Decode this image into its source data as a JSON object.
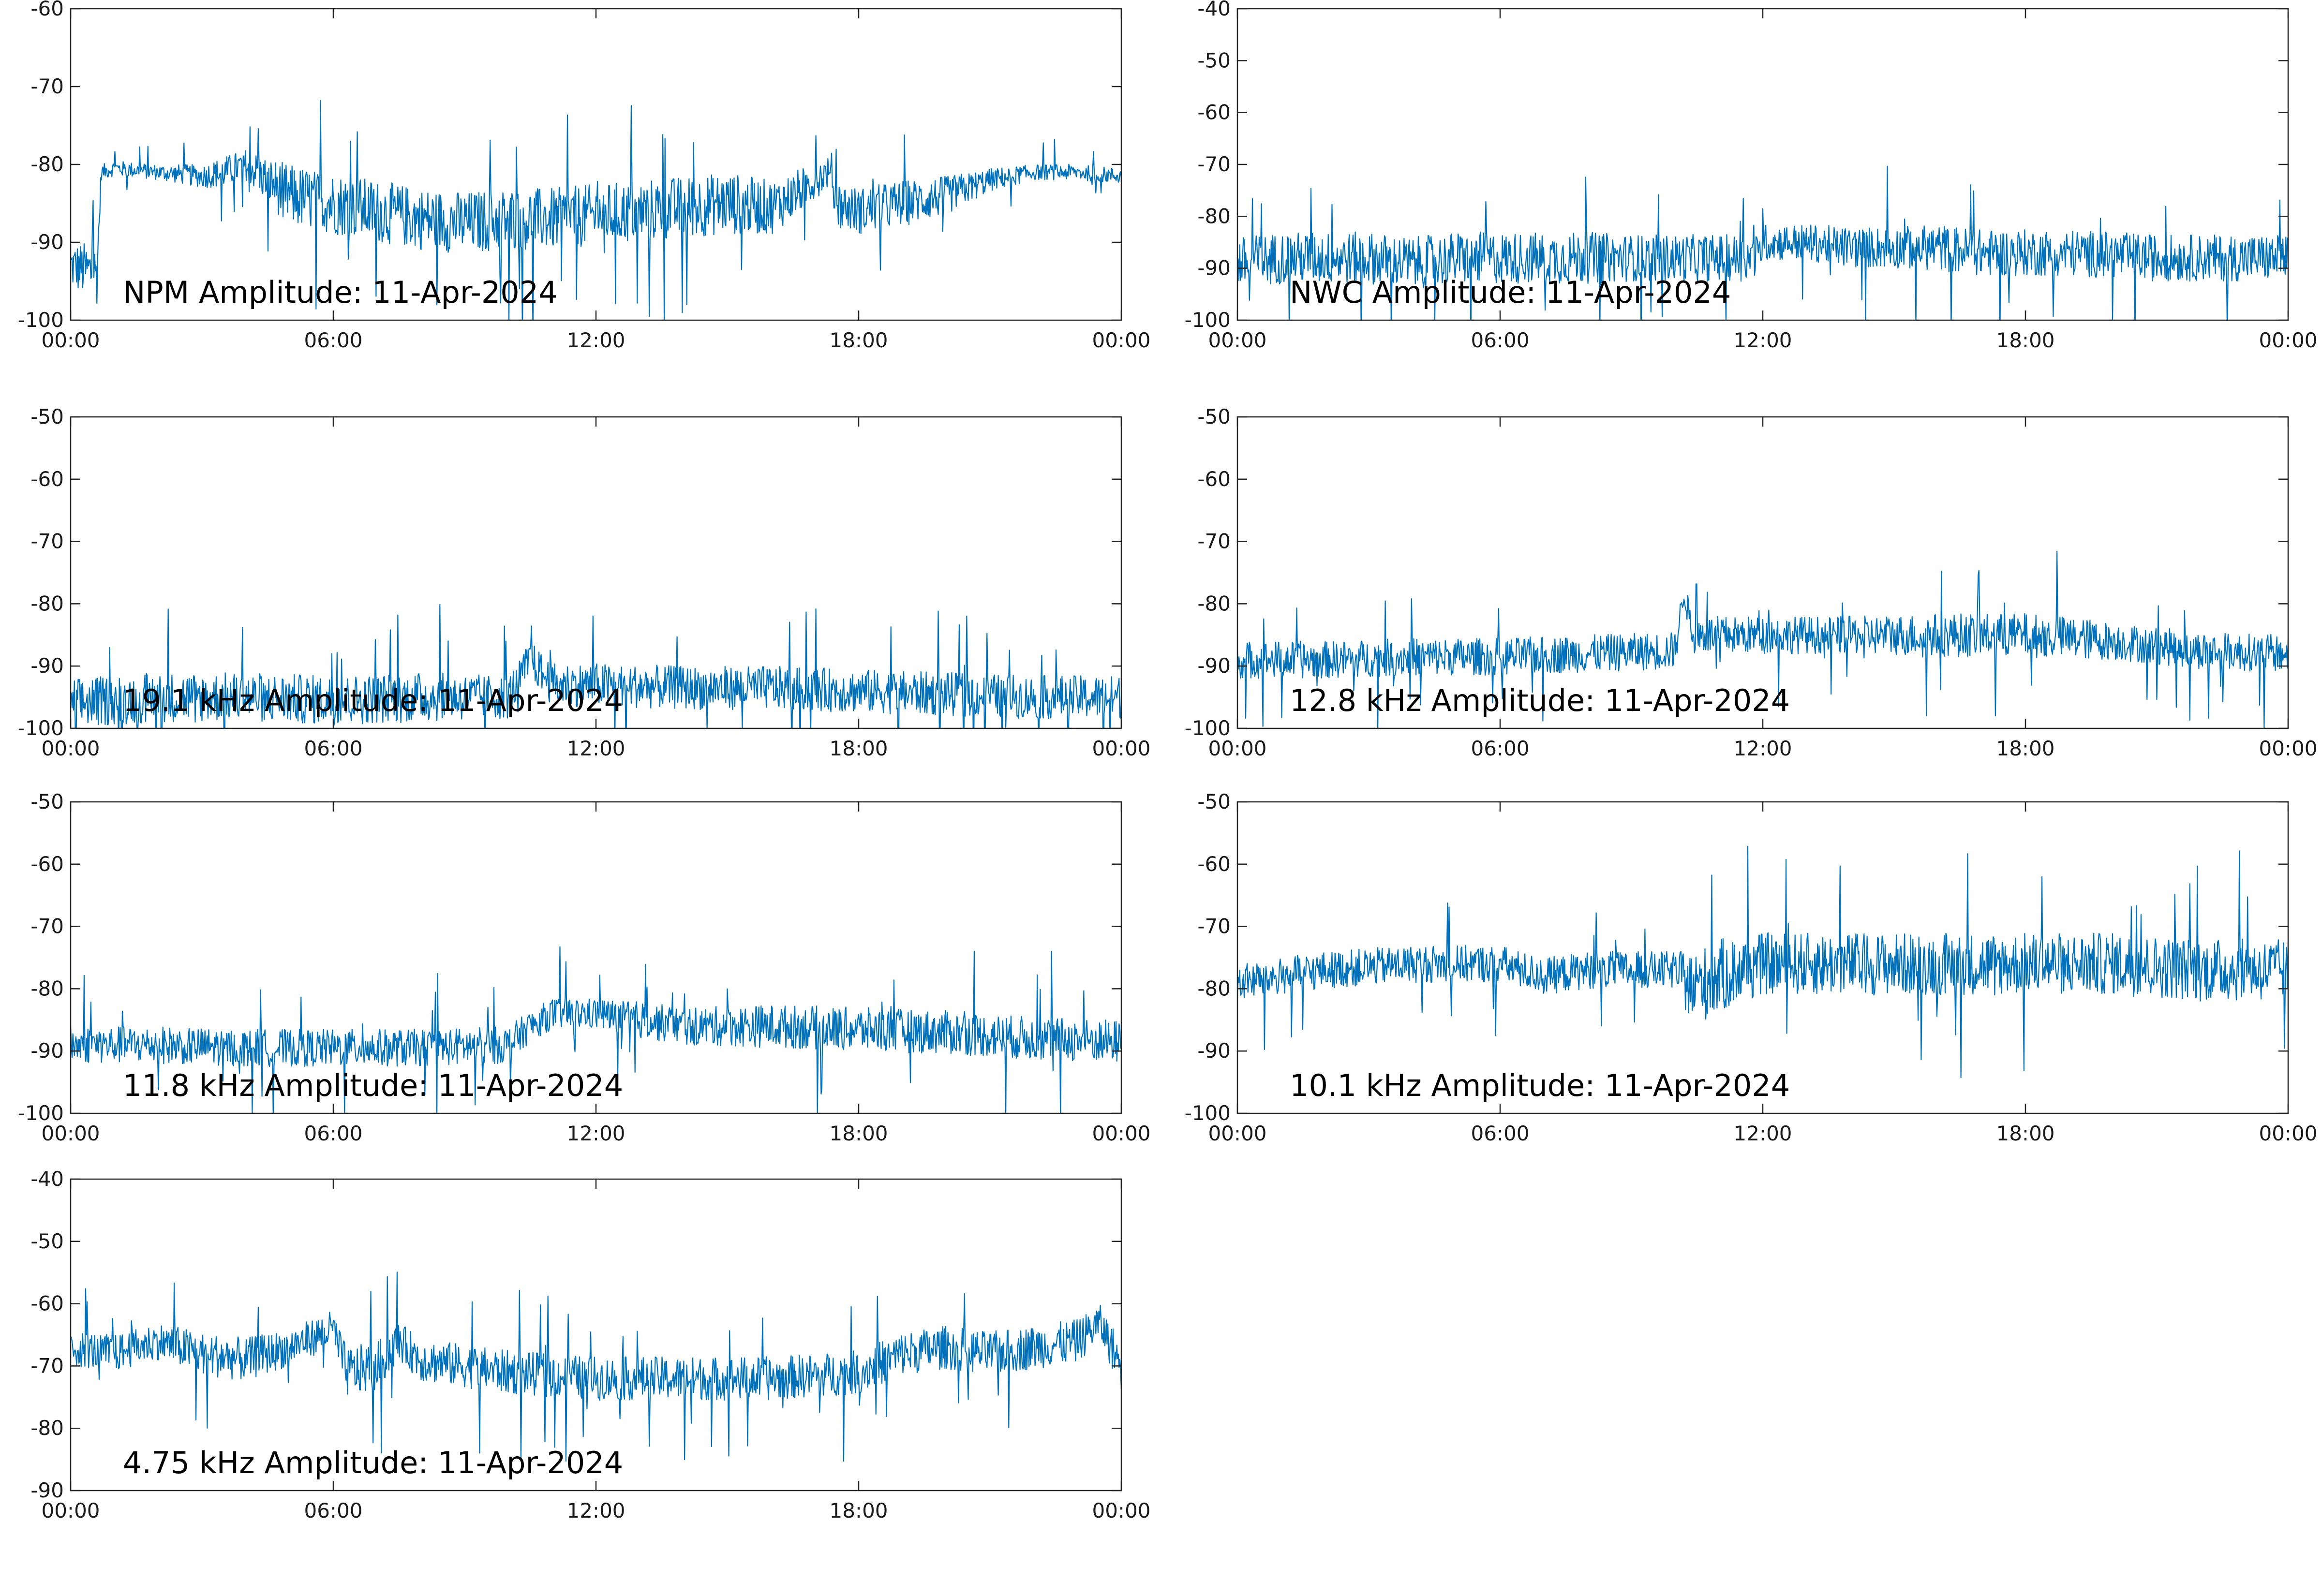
{
  "style": {
    "line_color": "#0072BD",
    "axis_color": "#262626",
    "background": "#ffffff"
  },
  "chart_data": [
    {
      "type": "line",
      "label": "NPM Amplitude: 11-Apr-2024",
      "x_ticks": [
        "00:00",
        "06:00",
        "12:00",
        "18:00",
        "00:00"
      ],
      "xlim_hours": [
        0,
        24
      ],
      "ylim": [
        -100,
        -60
      ],
      "y_ticks": [
        -60,
        -70,
        -80,
        -90,
        -100
      ],
      "series": [
        {
          "x": [
            0,
            0.6,
            0.7,
            1,
            2,
            3,
            3.5,
            4,
            4.5,
            5,
            6,
            7,
            8,
            9,
            10,
            11,
            12,
            13,
            14,
            15,
            16,
            16.5,
            17,
            17.3,
            17.5,
            18,
            19,
            20,
            21,
            22,
            23,
            24
          ],
          "y": [
            -93,
            -94,
            -81,
            -80.5,
            -81,
            -81.5,
            -81,
            -80,
            -82,
            -84,
            -85,
            -86,
            -87,
            -87.5,
            -87,
            -87,
            -86.5,
            -86,
            -85.5,
            -85,
            -85.5,
            -84,
            -82,
            -81,
            -85,
            -86,
            -85,
            -84,
            -82,
            -81,
            -81,
            -81.5
          ],
          "spread": [
            3,
            4,
            1,
            1,
            1,
            1.5,
            2,
            2,
            3,
            4,
            4,
            4,
            4,
            4,
            4,
            4,
            4,
            4,
            4,
            4,
            3.5,
            3,
            2.5,
            2,
            3,
            3,
            3,
            2.5,
            1.5,
            1,
            1,
            1
          ]
        }
      ]
    },
    {
      "type": "line",
      "label": "NWC Amplitude: 11-Apr-2024",
      "x_ticks": [
        "00:00",
        "06:00",
        "12:00",
        "18:00",
        "00:00"
      ],
      "xlim_hours": [
        0,
        24
      ],
      "ylim": [
        -100,
        -40
      ],
      "y_ticks": [
        -40,
        -50,
        -60,
        -70,
        -80,
        -90,
        -100
      ],
      "series": [
        {
          "x": [
            0,
            1,
            2,
            3,
            4,
            5,
            6,
            7,
            8,
            9,
            10,
            11,
            11.9,
            12,
            13,
            14,
            15,
            16,
            17,
            18,
            19,
            20,
            21,
            22,
            23,
            24
          ],
          "y": [
            -89,
            -88,
            -88,
            -88,
            -89,
            -88,
            -88,
            -88,
            -88,
            -88,
            -88,
            -88,
            -88,
            -85,
            -85,
            -86,
            -86,
            -86,
            -87,
            -87,
            -87,
            -87.5,
            -88,
            -88,
            -88,
            -88
          ],
          "spread": [
            5,
            5,
            5,
            5,
            5,
            5,
            5,
            5,
            5,
            4.5,
            4.5,
            4.5,
            4.5,
            3.5,
            3.5,
            4,
            4,
            4.5,
            4.5,
            4.5,
            4.5,
            4.5,
            4.5,
            4.5,
            4.5,
            4.5
          ]
        }
      ]
    },
    {
      "type": "line",
      "label": "19.1 kHz Amplitude: 11-Apr-2024",
      "x_ticks": [
        "00:00",
        "06:00",
        "12:00",
        "18:00",
        "00:00"
      ],
      "xlim_hours": [
        0,
        24
      ],
      "ylim": [
        -100,
        -50
      ],
      "y_ticks": [
        -50,
        -60,
        -70,
        -80,
        -90,
        -100
      ],
      "series": [
        {
          "x": [
            0,
            2,
            4,
            6,
            8,
            10,
            10.5,
            11,
            12,
            14,
            16,
            18,
            20,
            22,
            24
          ],
          "y": [
            -96,
            -95,
            -95,
            -95.5,
            -95,
            -95,
            -89,
            -93,
            -93,
            -93.5,
            -93.5,
            -94,
            -94.5,
            -95,
            -95
          ],
          "spread": [
            4,
            4,
            4,
            4,
            4,
            3.5,
            3,
            3.5,
            3.5,
            3.5,
            3.5,
            3.5,
            3.5,
            3.5,
            3.5
          ]
        }
      ]
    },
    {
      "type": "line",
      "label": "12.8 kHz Amplitude: 11-Apr-2024",
      "x_ticks": [
        "00:00",
        "06:00",
        "12:00",
        "18:00",
        "00:00"
      ],
      "xlim_hours": [
        0,
        24
      ],
      "ylim": [
        -100,
        -50
      ],
      "y_ticks": [
        -50,
        -60,
        -70,
        -80,
        -90,
        -100
      ],
      "series": [
        {
          "x": [
            0,
            2,
            4,
            6,
            8,
            10,
            10.2,
            10.4,
            12,
            14,
            16,
            17,
            18,
            19,
            20,
            22,
            24
          ],
          "y": [
            -89,
            -89,
            -88.5,
            -88.5,
            -88,
            -87.5,
            -78,
            -85,
            -85,
            -85,
            -85,
            -85,
            -85,
            -85.5,
            -86,
            -87.5,
            -88
          ],
          "spread": [
            3,
            3,
            3,
            3,
            3,
            3,
            2,
            3,
            3,
            3,
            3.5,
            3.5,
            3.5,
            3.5,
            3,
            3,
            3
          ]
        }
      ]
    },
    {
      "type": "line",
      "label": "11.8 kHz Amplitude: 11-Apr-2024",
      "x_ticks": [
        "00:00",
        "06:00",
        "12:00",
        "18:00",
        "00:00"
      ],
      "xlim_hours": [
        0,
        24
      ],
      "ylim": [
        -100,
        -50
      ],
      "y_ticks": [
        -50,
        -60,
        -70,
        -80,
        -90,
        -100
      ],
      "series": [
        {
          "x": [
            0,
            2,
            4,
            6,
            8,
            10,
            10.5,
            11,
            12,
            13,
            14,
            16,
            18,
            20,
            22,
            24
          ],
          "y": [
            -89,
            -89,
            -89.5,
            -89.5,
            -89.5,
            -89,
            -86,
            -84,
            -84,
            -85,
            -86,
            -86,
            -86.5,
            -87,
            -88,
            -88.5
          ],
          "spread": [
            3,
            3,
            3,
            3,
            3,
            3,
            2.5,
            2.5,
            2.5,
            3,
            3,
            3.5,
            3.5,
            3.5,
            3.5,
            3.5
          ]
        }
      ]
    },
    {
      "type": "line",
      "label": "10.1 kHz Amplitude: 11-Apr-2024",
      "x_ticks": [
        "00:00",
        "06:00",
        "12:00",
        "18:00",
        "00:00"
      ],
      "xlim_hours": [
        0,
        24
      ],
      "ylim": [
        -100,
        -50
      ],
      "y_ticks": [
        -50,
        -60,
        -70,
        -80,
        -90,
        -100
      ],
      "series": [
        {
          "x": [
            0,
            1,
            2,
            4,
            6,
            7,
            8,
            10,
            10.4,
            11,
            12,
            14,
            16,
            18,
            20,
            22,
            24
          ],
          "y": [
            -79,
            -78,
            -77,
            -76,
            -76,
            -78,
            -77,
            -77,
            -80,
            -78,
            -76,
            -76,
            -76,
            -76,
            -76,
            -77,
            -77
          ],
          "spread": [
            3,
            3,
            3,
            3,
            3,
            3,
            3,
            3,
            6,
            6,
            5,
            5,
            5,
            5,
            5,
            5,
            5
          ]
        }
      ]
    },
    {
      "type": "line",
      "label": "4.75 kHz Amplitude: 11-Apr-2024",
      "x_ticks": [
        "00:00",
        "06:00",
        "12:00",
        "18:00",
        "00:00"
      ],
      "xlim_hours": [
        0,
        24
      ],
      "ylim": [
        -90,
        -40
      ],
      "y_ticks": [
        -40,
        -50,
        -60,
        -70,
        -80,
        -90
      ],
      "series": [
        {
          "x": [
            0,
            1,
            2,
            3,
            4,
            5,
            6,
            6.3,
            7,
            7.5,
            8,
            10,
            12,
            14,
            16,
            18,
            19,
            20,
            21,
            22,
            23,
            23.5,
            24
          ],
          "y": [
            -67,
            -68,
            -66,
            -68,
            -69,
            -67,
            -64,
            -71,
            -70,
            -66,
            -69,
            -71,
            -72,
            -72,
            -72,
            -71,
            -68,
            -67,
            -68,
            -67,
            -66,
            -63,
            -70
          ],
          "spread": [
            3,
            3,
            3,
            3.5,
            3.5,
            3,
            3,
            4,
            4,
            3,
            3.5,
            3.5,
            3.5,
            3.5,
            3.5,
            3.5,
            3.5,
            3.5,
            3.5,
            3.5,
            3.5,
            3,
            4
          ]
        }
      ]
    }
  ]
}
